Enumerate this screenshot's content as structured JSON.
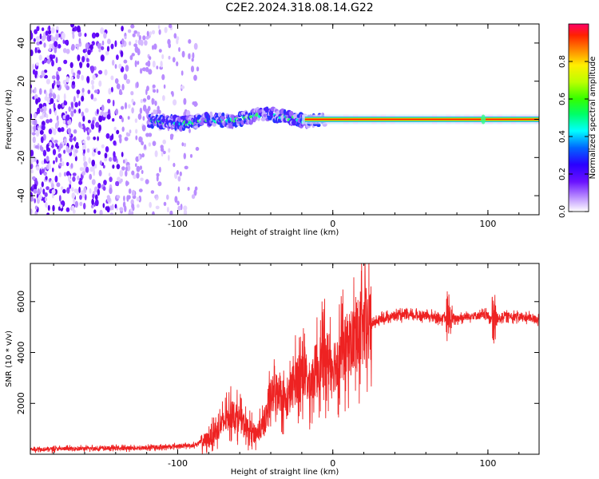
{
  "title": "C2E2.2024.318.08.14.G22",
  "chart_data": [
    {
      "type": "heatmap",
      "title": "C2E2.2024.318.08.14.G22",
      "xlabel": "Height of straight line (km)",
      "ylabel": "Frequency (Hz)",
      "xlim": [
        -195,
        133
      ],
      "ylim": [
        -50,
        50
      ],
      "xticks": [
        -100,
        0,
        100
      ],
      "yticks": [
        -40,
        -20,
        0,
        20,
        40
      ],
      "colorbar": {
        "label": "Normalized spectral amplitude",
        "ticks": [
          "0.0",
          "0.2",
          "0.4",
          "0.6",
          "0.8"
        ],
        "range": [
          0,
          1
        ]
      },
      "noise_region_x": [
        -195,
        -87
      ],
      "signal_start_x": -118,
      "signal_track": [
        {
          "x": -118,
          "y": -1
        },
        {
          "x": -95,
          "y": -2
        },
        {
          "x": -80,
          "y": 0
        },
        {
          "x": -65,
          "y": -1
        },
        {
          "x": -50,
          "y": 2
        },
        {
          "x": -40,
          "y": 3
        },
        {
          "x": -30,
          "y": 1
        },
        {
          "x": -18,
          "y": -1
        },
        {
          "x": -8,
          "y": 0
        },
        {
          "x": 133,
          "y": 0
        }
      ],
      "grid": false
    },
    {
      "type": "line",
      "xlabel": "Height of straight line (km)",
      "ylabel": "SNR (10 * v/v)",
      "xlim": [
        -195,
        133
      ],
      "ylim": [
        0,
        7500
      ],
      "xticks": [
        -100,
        0,
        100
      ],
      "yticks": [
        2000,
        4000,
        6000
      ],
      "series": [
        {
          "color": "#ee2222",
          "x": [
            -195,
            -120,
            -90,
            -80,
            -75,
            -70,
            -65,
            -60,
            -55,
            -50,
            -45,
            -40,
            -35,
            -30,
            -25,
            -20,
            -15,
            -10,
            -5,
            0,
            10,
            20,
            30,
            40,
            60,
            75,
            80,
            90,
            100,
            104,
            110,
            120,
            133
          ],
          "y": [
            200,
            250,
            350,
            600,
            900,
            1300,
            1600,
            1400,
            1000,
            800,
            1100,
            2200,
            2600,
            2000,
            2800,
            3300,
            2700,
            3500,
            3800,
            3500,
            4300,
            4900,
            5300,
            5450,
            5450,
            5300,
            5350,
            5450,
            5450,
            5200,
            5450,
            5400,
            5300
          ]
        }
      ],
      "grid": false
    }
  ]
}
